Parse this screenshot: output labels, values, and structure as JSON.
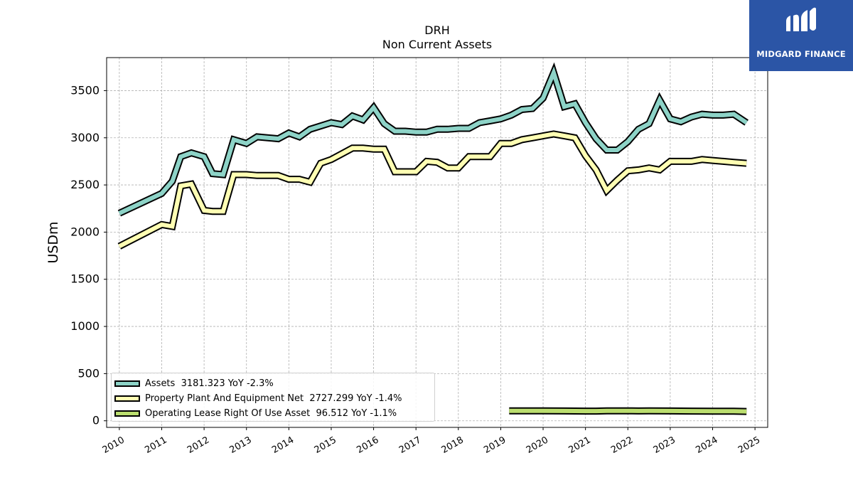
{
  "chart_data": {
    "type": "line",
    "title": "DRH",
    "subtitle": "Non Current  Assets",
    "ylabel": "USDm",
    "xlabel": "",
    "ylim": [
      -70,
      3850
    ],
    "xlim": [
      2009.7,
      2025.3
    ],
    "yticks": [
      0,
      500,
      1000,
      1500,
      2000,
      2500,
      3000,
      3500
    ],
    "xticks": [
      "2010",
      "2011",
      "2012",
      "2013",
      "2014",
      "2015",
      "2016",
      "2017",
      "2018",
      "2019",
      "2020",
      "2021",
      "2022",
      "2023",
      "2024",
      "2025"
    ],
    "grid": true,
    "legend_position": "lower-left",
    "series": [
      {
        "name": "Assets  3181.323 YoY -2.3%",
        "color": "#8dd3c7",
        "x": [
          2010.0,
          2011.0,
          2011.25,
          2011.45,
          2011.7,
          2012.0,
          2012.2,
          2012.45,
          2012.7,
          2013.0,
          2013.25,
          2013.75,
          2014.0,
          2014.25,
          2014.5,
          2015.0,
          2015.25,
          2015.5,
          2015.75,
          2016.0,
          2016.25,
          2016.5,
          2016.75,
          2017.0,
          2017.25,
          2017.5,
          2017.75,
          2018.0,
          2018.25,
          2018.5,
          2018.75,
          2019.0,
          2019.25,
          2019.5,
          2019.75,
          2020.0,
          2020.25,
          2020.5,
          2020.75,
          2021.0,
          2021.25,
          2021.5,
          2021.75,
          2022.0,
          2022.25,
          2022.5,
          2022.75,
          2023.0,
          2023.25,
          2023.5,
          2023.75,
          2024.0,
          2024.25,
          2024.5,
          2024.8
        ],
        "values": [
          2200,
          2410,
          2540,
          2800,
          2840,
          2800,
          2620,
          2610,
          2980,
          2940,
          3010,
          2990,
          3050,
          3010,
          3090,
          3160,
          3140,
          3230,
          3190,
          3320,
          3150,
          3070,
          3070,
          3060,
          3060,
          3090,
          3090,
          3100,
          3100,
          3160,
          3180,
          3200,
          3240,
          3300,
          3310,
          3420,
          3690,
          3330,
          3360,
          3160,
          2990,
          2870,
          2870,
          2960,
          3090,
          3150,
          3400,
          3200,
          3170,
          3220,
          3250,
          3240,
          3240,
          3250,
          3160
        ]
      },
      {
        "name": "Property Plant And Equipment Net  2727.299 YoY -1.4%",
        "color": "#ffffb3",
        "x": [
          2010.0,
          2011.0,
          2011.25,
          2011.45,
          2011.7,
          2012.0,
          2012.2,
          2012.45,
          2012.7,
          2013.0,
          2013.25,
          2013.75,
          2014.0,
          2014.25,
          2014.5,
          2014.75,
          2015.0,
          2015.25,
          2015.5,
          2015.75,
          2016.0,
          2016.25,
          2016.5,
          2016.75,
          2017.0,
          2017.25,
          2017.5,
          2017.75,
          2018.0,
          2018.25,
          2018.5,
          2018.75,
          2019.0,
          2019.25,
          2019.5,
          2019.75,
          2020.0,
          2020.25,
          2020.5,
          2020.75,
          2021.0,
          2021.25,
          2021.5,
          2021.75,
          2022.0,
          2022.25,
          2022.5,
          2022.75,
          2023.0,
          2023.25,
          2023.5,
          2023.75,
          2024.0,
          2024.25,
          2024.5,
          2024.8
        ],
        "values": [
          1850,
          2080,
          2060,
          2490,
          2510,
          2230,
          2220,
          2220,
          2610,
          2610,
          2600,
          2600,
          2560,
          2560,
          2530,
          2730,
          2770,
          2830,
          2890,
          2890,
          2880,
          2880,
          2640,
          2640,
          2640,
          2750,
          2740,
          2680,
          2680,
          2800,
          2800,
          2800,
          2940,
          2940,
          2980,
          3000,
          3020,
          3040,
          3020,
          3000,
          2810,
          2660,
          2440,
          2550,
          2650,
          2660,
          2680,
          2660,
          2750,
          2750,
          2750,
          2770,
          2760,
          2750,
          2740,
          2730
        ]
      },
      {
        "name": "Operating Lease Right Of Use Asset  96.512 YoY -1.1%",
        "color": "#bbde6f",
        "x": [
          2019.2,
          2019.5,
          2020.0,
          2020.5,
          2021.0,
          2021.25,
          2021.5,
          2022.0,
          2022.25,
          2022.5,
          2023.0,
          2023.5,
          2024.0,
          2024.5,
          2024.8
        ],
        "values": [
          106,
          106,
          105,
          104,
          103,
          103,
          106,
          106,
          104,
          105,
          104,
          103,
          102,
          101,
          99
        ]
      }
    ]
  },
  "logo": {
    "text": "MIDGARD FINANCE",
    "bg_color": "#2b55a6"
  }
}
